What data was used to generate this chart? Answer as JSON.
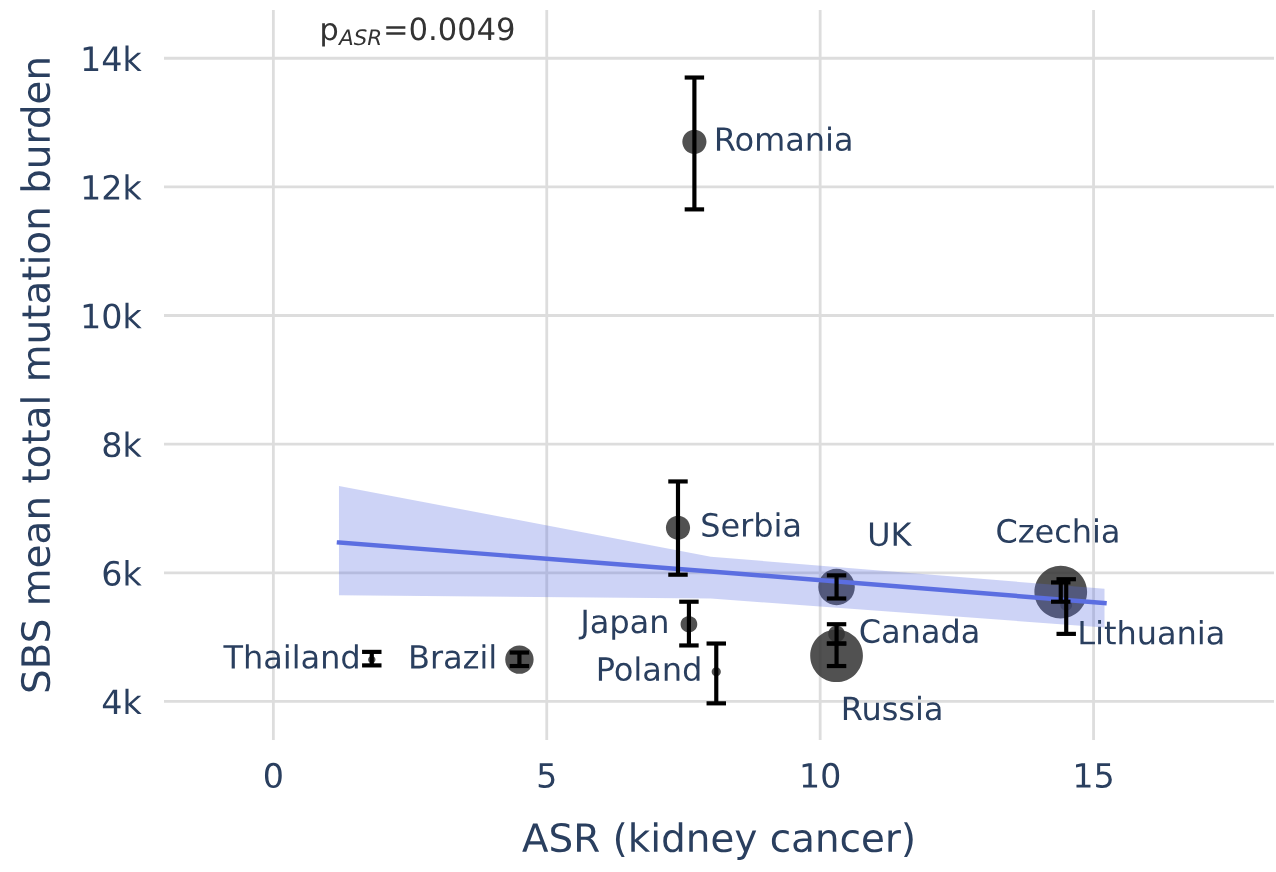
{
  "chart_data": {
    "type": "bubble",
    "xlabel": "ASR (kidney cancer)",
    "ylabel": "SBS mean total mutation burden",
    "xlim": [
      -2,
      18.3
    ],
    "ylim": [
      3400,
      14750
    ],
    "xticks": [
      0,
      5,
      10,
      15
    ],
    "yticks": [
      {
        "value": 4000,
        "label": "4k"
      },
      {
        "value": 6000,
        "label": "6k"
      },
      {
        "value": 8000,
        "label": "8k"
      },
      {
        "value": 10000,
        "label": "10k"
      },
      {
        "value": 12000,
        "label": "12k"
      },
      {
        "value": 14000,
        "label": "14k"
      }
    ],
    "grid": true,
    "legend": false,
    "series": [
      {
        "color": "#333333",
        "x": [
          7.7,
          7.4,
          10.3,
          14.4,
          10.3,
          14.5,
          10.3,
          7.6,
          8.1,
          1.8,
          4.5
        ],
        "values": [
          12700,
          6700,
          5780,
          5700,
          5050,
          5500,
          4710,
          5200,
          4460,
          4650,
          4650
        ],
        "sizes": [
          0.21,
          0.21,
          0.48,
          1,
          0.1,
          0.05,
          1,
          0.1,
          0.03,
          0.02,
          0.29
        ],
        "errors": [
          [
            11650,
            13700
          ],
          [
            5970,
            7420
          ],
          [
            5600,
            5960
          ],
          [
            5550,
            5850
          ],
          [
            4900,
            5200
          ],
          [
            5050,
            5900
          ],
          [
            4550,
            4900
          ],
          [
            4870,
            5550
          ],
          [
            3970,
            4900
          ],
          [
            4560,
            4770
          ],
          [
            4550,
            4760
          ]
        ]
      },
      {
        "type": "line",
        "color": "#5b6ee1",
        "x": [
          1.2,
          8,
          15.2
        ],
        "values": [
          6470,
          6020,
          5530
        ],
        "lower": [
          5650,
          5600,
          5150
        ],
        "upper": [
          7350,
          6250,
          5750
        ]
      }
    ],
    "annotations": [
      "p$_{ASR}$=0.0049",
      {
        "text": "Romania",
        "x": 7.7,
        "y": 12700
      },
      {
        "text": "Serbia",
        "x": 7.4,
        "y": 6700
      },
      {
        "text": "UK",
        "x": 10.3,
        "y": 5780
      },
      {
        "text": "Czechia",
        "x": 14.4,
        "y": 5700
      },
      {
        "text": "Canada",
        "x": 10.3,
        "y": 5050
      },
      {
        "text": "Lithuania",
        "x": 14.5,
        "y": 5500
      },
      {
        "text": "Russia",
        "x": 10.3,
        "y": 4710
      },
      {
        "text": "Japan",
        "x": 7.6,
        "y": 5200
      },
      {
        "text": "Poland",
        "x": 8.1,
        "y": 4460
      },
      {
        "text": "Thailand",
        "x": 1.8,
        "y": 4650
      },
      {
        "text": "Brazil",
        "x": 4.5,
        "y": 4650
      }
    ]
  }
}
